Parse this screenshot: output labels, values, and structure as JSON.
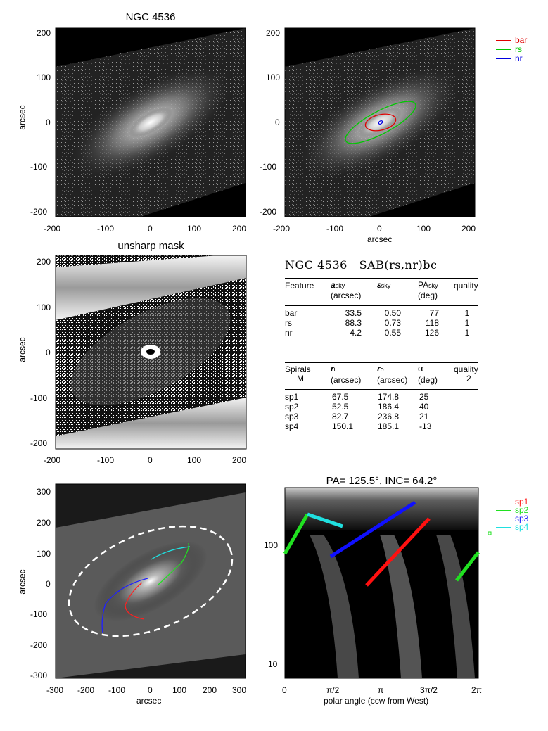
{
  "panel1": {
    "title": "NGC 4536",
    "ylabel": "arcsec",
    "xticks": [
      "-200",
      "-100",
      "0",
      "100",
      "200"
    ],
    "yticks": [
      "200",
      "100",
      "0",
      "-100",
      "-200"
    ]
  },
  "panel2": {
    "xlabel": "arcsec",
    "xticks": [
      "-200",
      "-100",
      "0",
      "100",
      "200"
    ],
    "yticks": [
      "200",
      "100",
      "0",
      "-100",
      "-200"
    ],
    "legend": [
      {
        "label": "bar",
        "color": "#e00000"
      },
      {
        "label": "rs",
        "color": "#00c800"
      },
      {
        "label": "nr",
        "color": "#0000e0"
      }
    ]
  },
  "panel3": {
    "title": "unsharp mask",
    "ylabel": "arcsec",
    "xticks": [
      "-200",
      "-100",
      "0",
      "100",
      "200"
    ],
    "yticks": [
      "200",
      "100",
      "0",
      "-100",
      "-200"
    ]
  },
  "table": {
    "header_name": "NGC 4536",
    "header_type": "SAB(rs,nr)bc",
    "features": {
      "col1": "Feature",
      "col2": "a",
      "col2_sub": "sky",
      "col2_unit": "(arcsec)",
      "col3": "ε",
      "col3_sub": "sky",
      "col4": "PA",
      "col4_sub": "sky",
      "col4_unit": "(deg)",
      "col5": "quality",
      "rows": [
        [
          "bar",
          "33.5",
          "0.50",
          "77",
          "1"
        ],
        [
          "rs",
          "88.3",
          "0.73",
          "118",
          "1"
        ],
        [
          "nr",
          "4.2",
          "0.55",
          "126",
          "1"
        ]
      ]
    },
    "spirals": {
      "col1": "Spirals",
      "col1_sub": "M",
      "col2": "r",
      "col2_sub": "i",
      "col2_unit": "(arcsec)",
      "col3": "r",
      "col3_sub": "o",
      "col3_unit": "(arcsec)",
      "col4": "α",
      "col4_unit": "(deg)",
      "col5": "quality",
      "col5_val": "2",
      "rows": [
        [
          "sp1",
          "67.5",
          "174.8",
          "25"
        ],
        [
          "sp2",
          "52.5",
          "186.4",
          "40"
        ],
        [
          "sp3",
          "82.7",
          "236.8",
          "21"
        ],
        [
          "sp4",
          "150.1",
          "185.1",
          "-13"
        ]
      ]
    }
  },
  "panel5": {
    "ylabel": "arcsec",
    "xlabel": "arcsec",
    "xticks": [
      "-300",
      "-200",
      "-100",
      "0",
      "100",
      "200",
      "300"
    ],
    "yticks": [
      "300",
      "200",
      "100",
      "0",
      "-100",
      "-200",
      "-300"
    ]
  },
  "panel6": {
    "title": "PA= 125.5°, INC=  64.2°",
    "xlabel": "polar angle (ccw from West)",
    "xticks": [
      "0",
      "π/2",
      "π",
      "3π/2",
      "2π"
    ],
    "yticks": [
      "100",
      "10"
    ],
    "legend": [
      {
        "label": "sp1",
        "color": "#ff2020"
      },
      {
        "label": "sp2",
        "color": "#20e020"
      },
      {
        "label": "sp3",
        "color": "#2020ff"
      },
      {
        "label": "sp4",
        "color": "#20e0e0"
      }
    ]
  }
}
